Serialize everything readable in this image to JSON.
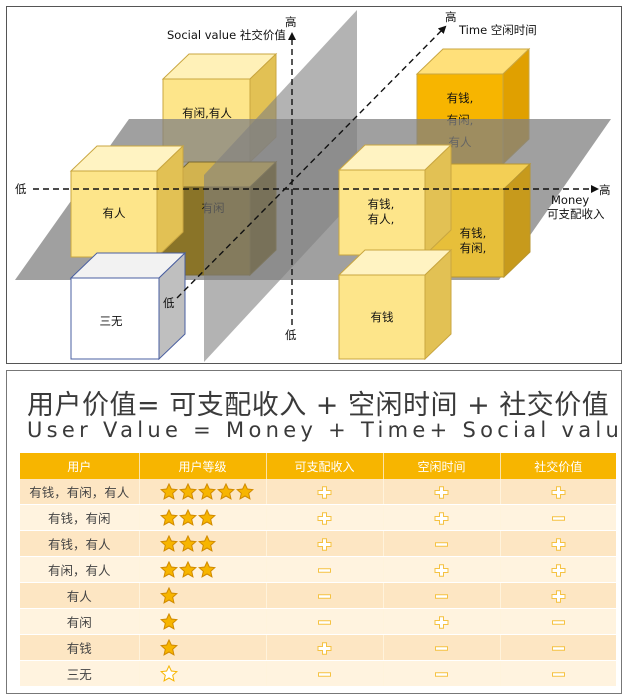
{
  "diagram": {
    "labels": {
      "social_axis": "Social value 社交价值",
      "time_axis": "Time 空闲时间",
      "money_axis_en": "Money",
      "money_axis_cn": "可支配收入",
      "high": "高",
      "low": "低"
    },
    "cubes": {
      "idle_social": [
        "有闲,有人"
      ],
      "all_three": [
        "有钱,",
        "有闲,",
        "有人"
      ],
      "social": [
        "有人"
      ],
      "idle": [
        "有闲"
      ],
      "money_social": [
        "有钱,",
        "有人,"
      ],
      "money_idle": [
        "有钱,",
        "有闲,"
      ],
      "none": [
        "三无"
      ],
      "money": [
        "有钱"
      ]
    },
    "colors": {
      "plane": "#808080",
      "cube_light": "#fde58a",
      "cube_dark": "#f7b500",
      "cube_empty": "#ffffff"
    }
  },
  "formula": {
    "cn": "用户价值= 可支配收入 + 空闲时间 + 社交价值",
    "en": "User Value = Money + Time+ Social value"
  },
  "table": {
    "headers": [
      "用户",
      "用户等级",
      "可支配收入",
      "空闲时间",
      "社交价值"
    ],
    "rows": [
      {
        "user": "有钱，有闲，有人",
        "stars": 5,
        "money": "+",
        "time": "+",
        "social": "+"
      },
      {
        "user": "有钱，有闲",
        "stars": 3,
        "money": "+",
        "time": "+",
        "social": "-"
      },
      {
        "user": "有钱，有人",
        "stars": 3,
        "money": "+",
        "time": "-",
        "social": "+"
      },
      {
        "user": "有闲，有人",
        "stars": 3,
        "money": "-",
        "time": "+",
        "social": "+"
      },
      {
        "user": "有人",
        "stars": 1,
        "money": "-",
        "time": "-",
        "social": "+"
      },
      {
        "user": "有闲",
        "stars": 1,
        "money": "-",
        "time": "+",
        "social": "-"
      },
      {
        "user": "有钱",
        "stars": 1,
        "money": "+",
        "time": "-",
        "social": "-"
      },
      {
        "user": "三无",
        "stars": 0,
        "money": "-",
        "time": "-",
        "social": "-"
      }
    ],
    "colors": {
      "header": "#f7b500",
      "row_odd": "#fde6c3",
      "row_even": "#fff3df",
      "star": "#f7b500",
      "symbol": "#f5c242"
    }
  }
}
